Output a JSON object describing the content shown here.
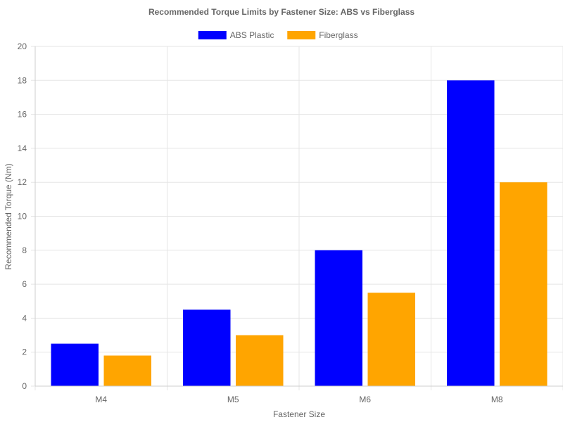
{
  "chart_data": {
    "type": "bar",
    "title": "Recommended Torque Limits by Fastener Size: ABS vs Fiberglass",
    "xlabel": "Fastener Size",
    "ylabel": "Recommended Torque (Nm)",
    "categories": [
      "M4",
      "M5",
      "M6",
      "M8"
    ],
    "series": [
      {
        "name": "ABS Plastic",
        "color": "#0000ff",
        "values": [
          2.5,
          4.5,
          8,
          18
        ]
      },
      {
        "name": "Fiberglass",
        "color": "#ffa500",
        "values": [
          1.8,
          3,
          5.5,
          12
        ]
      }
    ],
    "ylim": [
      0,
      20
    ],
    "yticks": [
      "0",
      "2",
      "4",
      "6",
      "8",
      "10",
      "12",
      "14",
      "16",
      "18",
      "20"
    ],
    "grid": true,
    "legend_position": "top-center"
  }
}
